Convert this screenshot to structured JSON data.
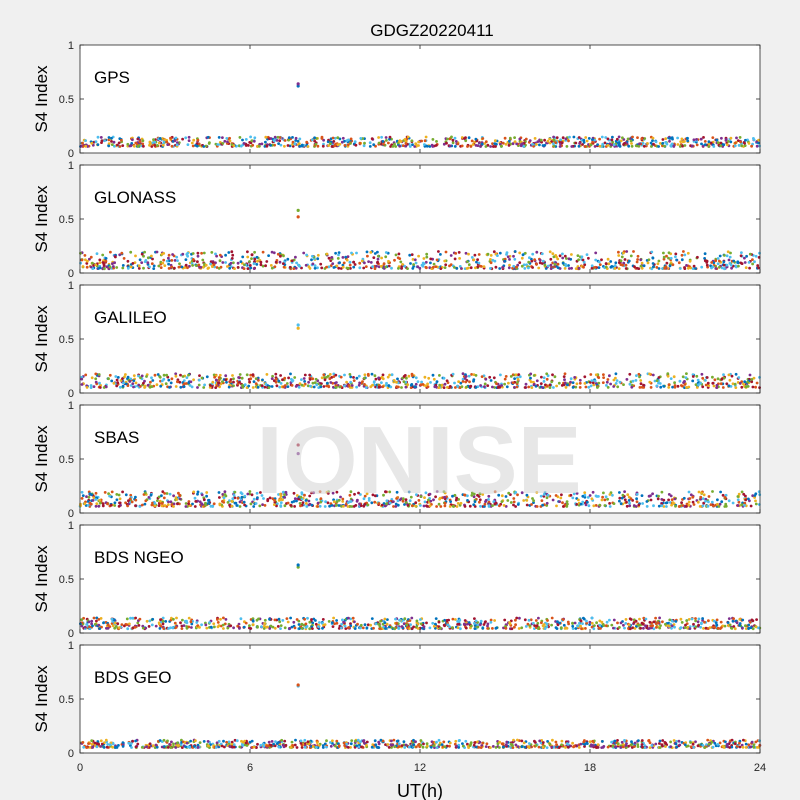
{
  "figure": {
    "title": "GDGZ20220411",
    "xlabel": "UT(h)",
    "watermark": "IONISE",
    "x_ticks": [
      0,
      6,
      12,
      18,
      24
    ],
    "x_tick_labels": [
      "0",
      "6",
      "12",
      "18",
      "24"
    ]
  },
  "colors": {
    "background": "#f0f0f0",
    "axes_background": "#ffffff",
    "axes_border": "#262626",
    "series": [
      "#0072BD",
      "#D95319",
      "#EDB120",
      "#7E2F8E",
      "#77AC30",
      "#4DBEEE",
      "#A2142F"
    ]
  },
  "chart_data": [
    {
      "type": "scatter",
      "constellation": "GPS",
      "ylabel": "S4 Index",
      "xlim": [
        0,
        24
      ],
      "ylim": [
        0,
        1
      ],
      "y_ticks": [
        0,
        0.5,
        1
      ],
      "y_tick_labels": [
        "0",
        "0.5",
        "1"
      ],
      "grid": false,
      "baseline_s4": [
        0.06,
        0.15
      ],
      "spike": {
        "x": 7.7,
        "y": [
          0.62,
          0.64
        ]
      }
    },
    {
      "type": "scatter",
      "constellation": "GLONASS",
      "ylabel": "S4 Index",
      "xlim": [
        0,
        24
      ],
      "ylim": [
        0,
        1
      ],
      "y_ticks": [
        0,
        0.5,
        1
      ],
      "y_tick_labels": [
        "0",
        "0.5",
        "1"
      ],
      "grid": false,
      "baseline_s4": [
        0.04,
        0.2
      ],
      "spike": {
        "x": 7.7,
        "y": [
          0.52,
          0.58
        ]
      }
    },
    {
      "type": "scatter",
      "constellation": "GALILEO",
      "ylabel": "S4 Index",
      "xlim": [
        0,
        24
      ],
      "ylim": [
        0,
        1
      ],
      "y_ticks": [
        0,
        0.5,
        1
      ],
      "y_tick_labels": [
        "0",
        "0.5",
        "1"
      ],
      "grid": false,
      "baseline_s4": [
        0.05,
        0.18
      ],
      "spike": {
        "x": 7.7,
        "y": [
          0.6,
          0.63
        ]
      }
    },
    {
      "type": "scatter",
      "constellation": "SBAS",
      "ylabel": "S4 Index",
      "xlim": [
        0,
        24
      ],
      "ylim": [
        0,
        1
      ],
      "y_ticks": [
        0,
        0.5,
        1
      ],
      "y_tick_labels": [
        "0",
        "0.5",
        "1"
      ],
      "grid": false,
      "baseline_s4": [
        0.06,
        0.2
      ],
      "spike": {
        "x": 7.7,
        "y": [
          0.55,
          0.63
        ]
      }
    },
    {
      "type": "scatter",
      "constellation": "BDS NGEO",
      "ylabel": "S4 Index",
      "xlim": [
        0,
        24
      ],
      "ylim": [
        0,
        1
      ],
      "y_ticks": [
        0,
        0.5,
        1
      ],
      "y_tick_labels": [
        "0",
        "0.5",
        "1"
      ],
      "grid": false,
      "baseline_s4": [
        0.04,
        0.14
      ],
      "spike": {
        "x": 7.7,
        "y": [
          0.61,
          0.63
        ]
      }
    },
    {
      "type": "scatter",
      "constellation": "BDS GEO",
      "ylabel": "S4 Index",
      "xlim": [
        0,
        24
      ],
      "ylim": [
        0,
        1
      ],
      "y_ticks": [
        0,
        0.5,
        1
      ],
      "y_tick_labels": [
        "0",
        "0.5",
        "1"
      ],
      "grid": false,
      "baseline_s4": [
        0.05,
        0.12
      ],
      "spike": {
        "x": 7.7,
        "y": [
          0.62,
          0.63
        ]
      }
    }
  ]
}
